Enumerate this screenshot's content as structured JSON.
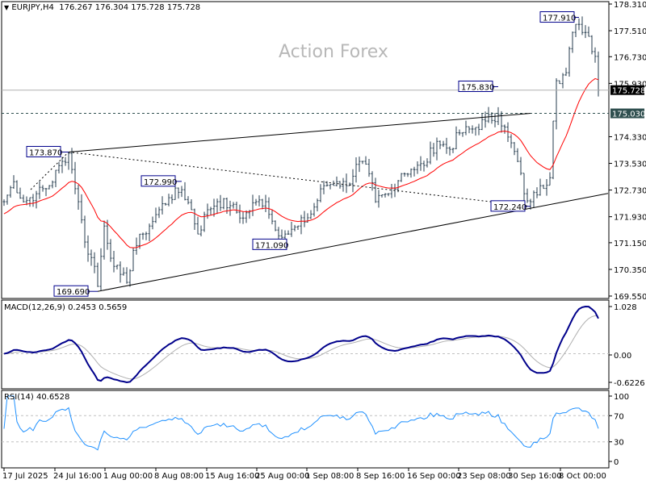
{
  "header": {
    "symbol": "EURJPY,H4",
    "ohlc": "176.267 176.304 175.728 175.728"
  },
  "watermark": "Action Forex",
  "colors": {
    "candles": "#253b4d",
    "ma": "#ff0000",
    "macd": "#00008b",
    "signal": "#b0b0b0",
    "rsi": "#1e90ff",
    "annotation_border": "#00008b",
    "current_price_bg": "#000000",
    "level_bg": "#2f4f4f"
  },
  "chart_data": [
    {
      "type": "candlestick",
      "title": "EURJPY,H4",
      "ylim": [
        169.55,
        178.31
      ],
      "y_ticks": [
        "178.310",
        "177.510",
        "176.730",
        "175.930",
        "174.330",
        "173.530",
        "172.730",
        "171.930",
        "171.150",
        "170.350",
        "169.550"
      ],
      "x_ticks": [
        "17 Jul 2025",
        "24 Jul 16:00",
        "1 Aug 00:00",
        "8 Aug 08:00",
        "15 Aug 16:00",
        "25 Aug 00:00",
        "1 Sep 08:00",
        "8 Sep 16:00",
        "16 Sep 00:00",
        "23 Sep 08:00",
        "30 Sep 16:00",
        "8 Oct 00:00"
      ],
      "close_path_bar_price": [
        [
          0,
          172.38
        ],
        [
          3,
          172.98
        ],
        [
          6,
          172.38
        ],
        [
          10,
          172.62
        ],
        [
          14,
          172.86
        ],
        [
          18,
          173.59
        ],
        [
          20,
          173.83
        ],
        [
          23,
          172.38
        ],
        [
          25,
          171.17
        ],
        [
          28,
          170.44
        ],
        [
          29,
          169.84
        ],
        [
          31,
          171.65
        ],
        [
          34,
          170.44
        ],
        [
          36,
          170.2
        ],
        [
          38,
          169.96
        ],
        [
          40,
          170.92
        ],
        [
          43,
          171.41
        ],
        [
          45,
          171.65
        ],
        [
          48,
          172.14
        ],
        [
          51,
          172.5
        ],
        [
          55,
          172.74
        ],
        [
          58,
          172.14
        ],
        [
          60,
          171.41
        ],
        [
          63,
          172.14
        ],
        [
          66,
          172.38
        ],
        [
          70,
          172.26
        ],
        [
          74,
          171.89
        ],
        [
          78,
          172.38
        ],
        [
          81,
          172.38
        ],
        [
          84,
          171.53
        ],
        [
          88,
          171.41
        ],
        [
          91,
          171.65
        ],
        [
          95,
          172.01
        ],
        [
          99,
          172.86
        ],
        [
          103,
          172.98
        ],
        [
          106,
          172.86
        ],
        [
          110,
          173.59
        ],
        [
          113,
          173.22
        ],
        [
          115,
          172.38
        ],
        [
          119,
          172.62
        ],
        [
          123,
          173.22
        ],
        [
          126,
          173.35
        ],
        [
          130,
          173.47
        ],
        [
          134,
          174.19
        ],
        [
          138,
          173.95
        ],
        [
          141,
          174.44
        ],
        [
          145,
          174.56
        ],
        [
          149,
          174.8
        ],
        [
          153,
          175.0
        ],
        [
          156,
          174.32
        ],
        [
          159,
          173.59
        ],
        [
          161,
          172.62
        ],
        [
          163,
          172.38
        ],
        [
          166,
          172.86
        ],
        [
          169,
          173.1
        ],
        [
          170,
          174.8
        ],
        [
          171,
          176.01
        ],
        [
          174,
          176.25
        ],
        [
          176,
          177.46
        ],
        [
          178,
          177.7
        ],
        [
          181,
          177.34
        ],
        [
          183,
          176.74
        ],
        [
          184,
          175.728
        ]
      ],
      "annotations": [
        {
          "text": "177.910",
          "bar": 178,
          "price": 177.91
        },
        {
          "text": "175.830",
          "bar": 153,
          "price": 175.83
        },
        {
          "text": "173.870",
          "bar": 20,
          "price": 173.87
        },
        {
          "text": "172.990",
          "bar": 55,
          "price": 172.99
        },
        {
          "text": "171.090",
          "bar": 88,
          "price": 171.09
        },
        {
          "text": "169.690",
          "bar": 29,
          "price": 169.69
        },
        {
          "text": "172.240",
          "bar": 163,
          "price": 172.24
        }
      ],
      "trendlines": [
        {
          "style": "solid",
          "from": [
            20,
            173.87
          ],
          "to": [
            163,
            175.03
          ]
        },
        {
          "style": "solid",
          "from": [
            29,
            169.69
          ],
          "to": [
            187,
            172.63
          ]
        },
        {
          "style": "dashed",
          "from": [
            20,
            173.87
          ],
          "to": [
            163,
            172.24
          ]
        }
      ],
      "levels": {
        "current_price": "175.728",
        "support": "175.030"
      },
      "moving_average": "red"
    },
    {
      "type": "line",
      "title": "MACD(12,26,9) 0.2453 0.5659",
      "ylim": [
        -0.6226,
        1.028
      ],
      "y_ticks": [
        "1.028",
        "0.00",
        "-0.6226"
      ]
    },
    {
      "type": "line",
      "title": "RSI(14) 40.6528",
      "ylim": [
        0,
        100
      ],
      "y_ticks": [
        "100",
        "70",
        "30",
        "0"
      ],
      "levels": [
        70,
        30
      ]
    }
  ]
}
